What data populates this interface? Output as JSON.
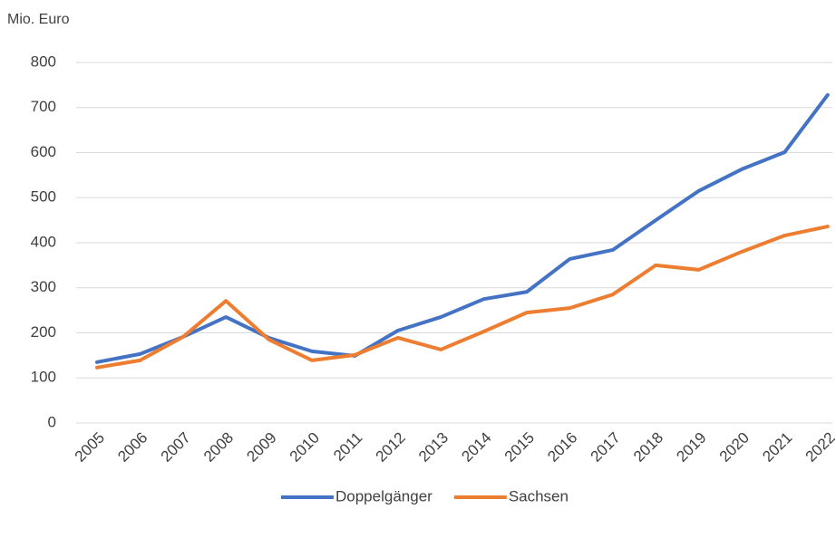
{
  "chart_data": {
    "type": "line",
    "y_label": "Mio. Euro",
    "categories": [
      "2005",
      "2006",
      "2007",
      "2008",
      "2009",
      "2010",
      "2011",
      "2012",
      "2013",
      "2014",
      "2015",
      "2016",
      "2017",
      "2018",
      "2019",
      "2020",
      "2021",
      "2022"
    ],
    "series": [
      {
        "name": "Doppelgänger",
        "color": "#4472c4",
        "values": [
          135,
          153,
          191,
          235,
          189,
          159,
          149,
          205,
          235,
          275,
          291,
          364,
          384,
          450,
          515,
          563,
          601,
          728
        ]
      },
      {
        "name": "Sachsen",
        "color": "#ed7d31",
        "values": [
          123,
          139,
          191,
          271,
          185,
          139,
          151,
          189,
          163,
          203,
          245,
          255,
          285,
          350,
          340,
          380,
          416,
          436
        ]
      }
    ],
    "ylim": [
      0,
      800
    ],
    "yticks": [
      0,
      100,
      200,
      300,
      400,
      500,
      600,
      700,
      800
    ],
    "grid": true,
    "legend": "bottom"
  }
}
